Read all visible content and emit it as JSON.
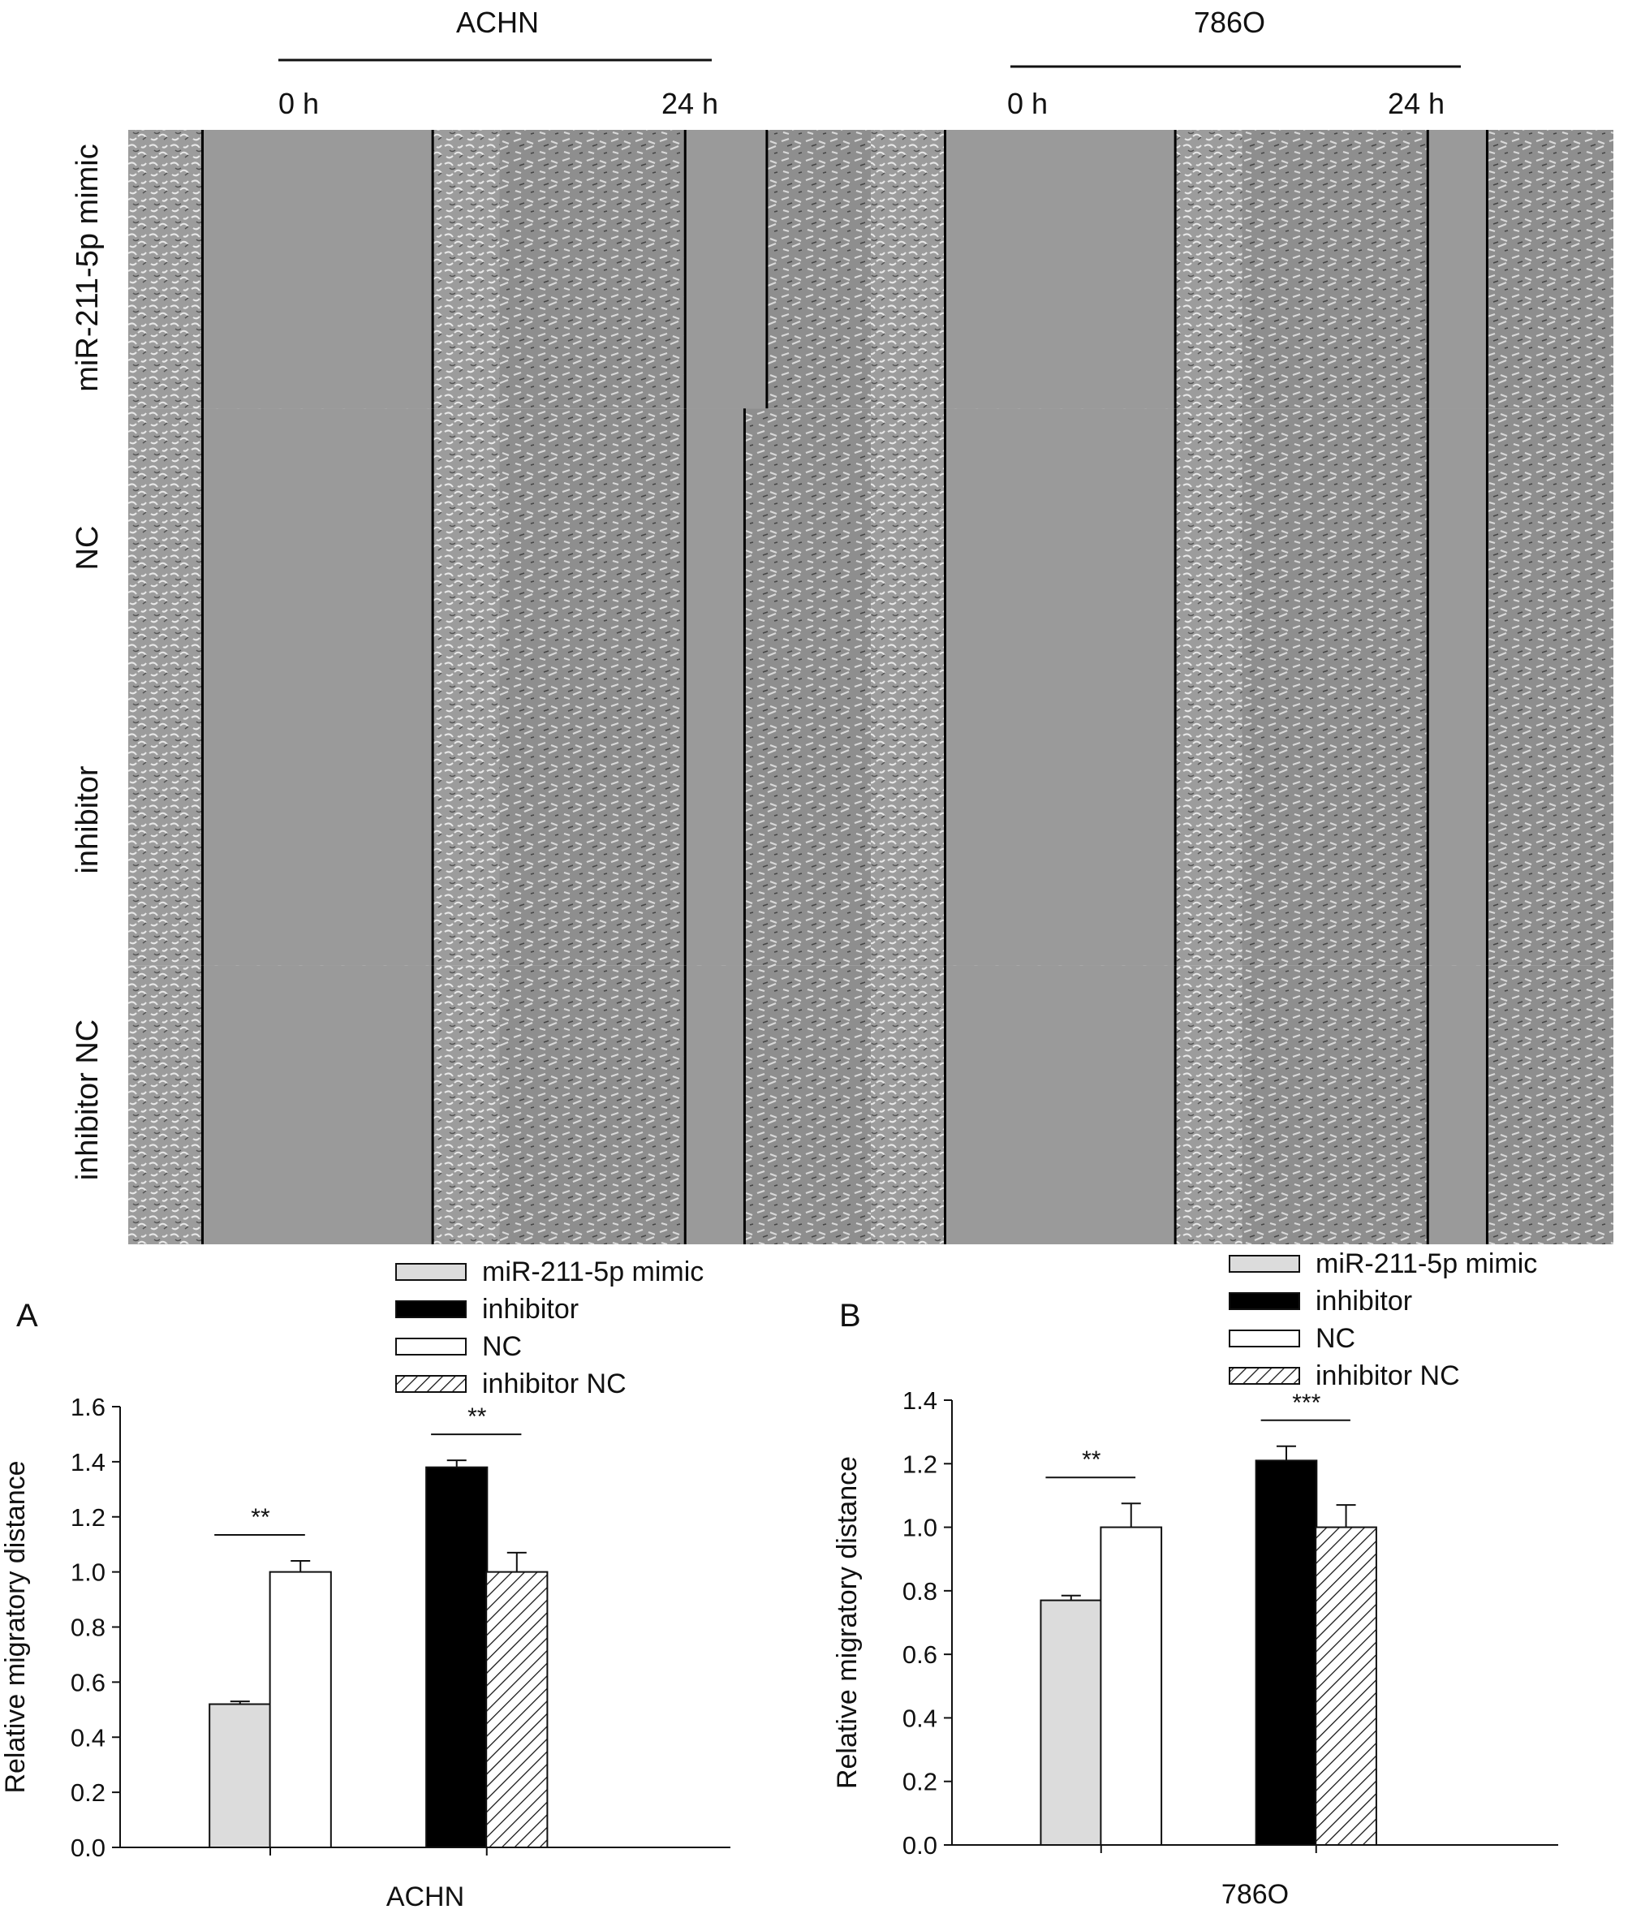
{
  "micrograph_panel": {
    "cell_lines": [
      "ACHN",
      "786O"
    ],
    "time_points": [
      "0 h",
      "24 h"
    ],
    "row_labels": [
      "miR-211-5p mimic",
      "NC",
      "inhibitor",
      "inhibitor NC"
    ]
  },
  "legend": {
    "items": [
      {
        "label": "miR-211-5p mimic",
        "fill": "#dcdcdc"
      },
      {
        "label": "inhibitor",
        "fill": "#000000"
      },
      {
        "label": "NC",
        "fill": "#ffffff"
      },
      {
        "label": "inhibitor NC",
        "fill": "hatch"
      }
    ]
  },
  "chart_data": [
    {
      "type": "bar",
      "panel_letter": "A",
      "xlabel": "ACHN",
      "ylabel": "Relative migratory distance",
      "ylim": [
        0,
        1.6
      ],
      "yticks": [
        "0.0",
        "0.2",
        "0.4",
        "0.6",
        "0.8",
        "1.0",
        "1.2",
        "1.4",
        "1.6"
      ],
      "bars": [
        {
          "series": "miR-211-5p mimic",
          "value": 0.52,
          "error": 0.01
        },
        {
          "series": "NC",
          "value": 1.0,
          "error": 0.04
        },
        {
          "series": "inhibitor",
          "value": 1.38,
          "error": 0.025
        },
        {
          "series": "inhibitor NC",
          "value": 1.0,
          "error": 0.07
        }
      ],
      "significance": [
        {
          "label": "**",
          "between": [
            0,
            1
          ]
        },
        {
          "label": "**",
          "between": [
            2,
            3
          ]
        }
      ]
    },
    {
      "type": "bar",
      "panel_letter": "B",
      "xlabel": "786O",
      "ylabel": "Relative migratory distance",
      "ylim": [
        0,
        1.4
      ],
      "yticks": [
        "0.0",
        "0.2",
        "0.4",
        "0.6",
        "0.8",
        "1.0",
        "1.2",
        "1.4"
      ],
      "bars": [
        {
          "series": "miR-211-5p mimic",
          "value": 0.77,
          "error": 0.015
        },
        {
          "series": "NC",
          "value": 1.0,
          "error": 0.075
        },
        {
          "series": "inhibitor",
          "value": 1.21,
          "error": 0.045
        },
        {
          "series": "inhibitor NC",
          "value": 1.0,
          "error": 0.07
        }
      ],
      "significance": [
        {
          "label": "**",
          "between": [
            0,
            1
          ]
        },
        {
          "label": "***",
          "between": [
            2,
            3
          ]
        }
      ]
    }
  ]
}
